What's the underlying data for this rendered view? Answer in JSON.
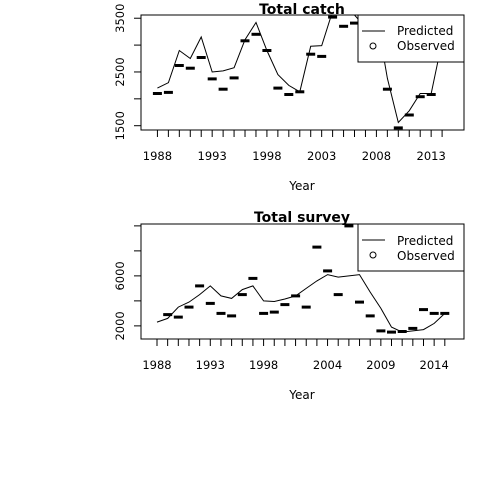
{
  "chart_data": [
    {
      "type": "line",
      "title": "Total catch",
      "xlabel": "Year",
      "ylabel": "",
      "xlim": [
        1986.5,
        2016.0
      ],
      "ylim": [
        1420,
        3560
      ],
      "xticks": [
        1988,
        1993,
        1998,
        2003,
        2008,
        2013
      ],
      "yticks": [
        1500,
        2500,
        3500
      ],
      "x": [
        1988,
        1989,
        1990,
        1991,
        1992,
        1993,
        1994,
        1995,
        1996,
        1997,
        1998,
        1999,
        2000,
        2001,
        2002,
        2003,
        2004,
        2005,
        2006,
        2007,
        2008,
        2009,
        2010,
        2011,
        2012,
        2013,
        2014
      ],
      "series": [
        {
          "name": "Predicted",
          "style": "line",
          "color": "#000000",
          "values": [
            2200,
            2300,
            2900,
            2750,
            3150,
            2500,
            2520,
            2580,
            3100,
            3420,
            2900,
            2450,
            2250,
            2130,
            2980,
            2990,
            3630,
            3620,
            3560,
            3330,
            3560,
            2380,
            1560,
            1780,
            2100,
            2100,
            3070
          ]
        },
        {
          "name": "Observed",
          "style": "dash",
          "color": "#000000",
          "values": [
            2100,
            2120,
            2620,
            2570,
            2770,
            2370,
            2180,
            2390,
            3080,
            3200,
            2900,
            2200,
            2080,
            2130,
            2830,
            2790,
            3520,
            3350,
            3410,
            3620,
            3720,
            2180,
            1460,
            1700,
            2040,
            2080,
            3070
          ]
        }
      ],
      "legend": {
        "position": "top-right",
        "entries": [
          {
            "label": "Predicted",
            "symbol": "line"
          },
          {
            "label": "Observed",
            "symbol": "circle"
          }
        ]
      }
    },
    {
      "type": "line",
      "title": "Total survey",
      "xlabel": "Year",
      "ylabel": "",
      "xlim": [
        1986.5,
        2016.8
      ],
      "ylim": [
        950,
        10150
      ],
      "xticks": [
        1988,
        1993,
        1998,
        2004,
        2009,
        2014
      ],
      "yticks": [
        2000,
        6000
      ],
      "x": [
        1988,
        1989,
        1990,
        1991,
        1992,
        1993,
        1994,
        1995,
        1996,
        1997,
        1998,
        1999,
        2000,
        2001,
        2002,
        2003,
        2004,
        2005,
        2006,
        2007,
        2008,
        2009,
        2010,
        2011,
        2012,
        2013,
        2014,
        2015
      ],
      "series": [
        {
          "name": "Predicted",
          "style": "line",
          "color": "#000000",
          "values": [
            2300,
            2600,
            3500,
            3900,
            4500,
            5200,
            4400,
            4200,
            4900,
            5200,
            4000,
            3950,
            4150,
            4400,
            5000,
            5600,
            6100,
            5900,
            6000,
            6100,
            4700,
            3400,
            1900,
            1500,
            1600,
            1700,
            2200,
            3000
          ]
        },
        {
          "name": "Observed",
          "style": "dash",
          "color": "#000000",
          "values": [
            800,
            2900,
            2700,
            3500,
            5200,
            3800,
            3000,
            2800,
            4500,
            5800,
            3000,
            3100,
            3700,
            4400,
            3500,
            8300,
            6400,
            4500,
            10000,
            3900,
            2800,
            1600,
            1500,
            1550,
            1800,
            3300,
            3000,
            3000
          ]
        }
      ],
      "legend": {
        "position": "top-right",
        "entries": [
          {
            "label": "Predicted",
            "symbol": "line"
          },
          {
            "label": "Observed",
            "symbol": "circle"
          }
        ]
      }
    }
  ]
}
